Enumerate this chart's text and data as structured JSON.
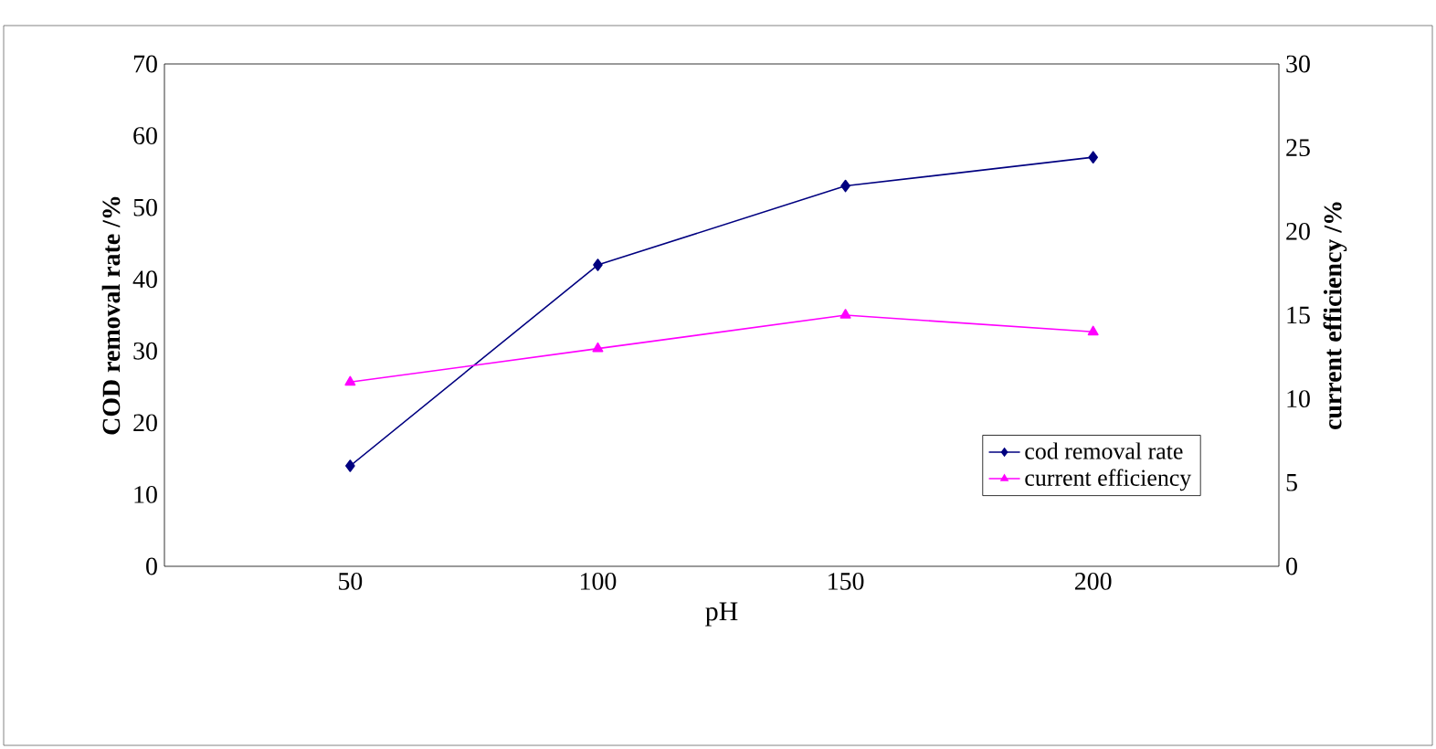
{
  "chart_data": {
    "type": "line",
    "xlabel": "pH",
    "ylabel": "COD removal rate /%",
    "y2label": "current efficiency /%",
    "categories": [
      "50",
      "100",
      "150",
      "200"
    ],
    "series": [
      {
        "name": "cod removal rate",
        "color": "#000080",
        "marker": "diamond",
        "values": [
          14,
          42,
          53,
          57
        ]
      },
      {
        "name": "current efficiency",
        "color": "#ff00ff",
        "marker": "triangle",
        "axis": "y2",
        "values": [
          11,
          13,
          15,
          14
        ]
      }
    ],
    "ylim": [
      0,
      70
    ],
    "yticks": [
      0,
      10,
      20,
      30,
      40,
      50,
      60,
      70
    ],
    "y2lim": [
      0,
      30
    ],
    "y2ticks": [
      0,
      5,
      10,
      15,
      20,
      25,
      30
    ],
    "grid": false,
    "legend": "bottom right"
  }
}
